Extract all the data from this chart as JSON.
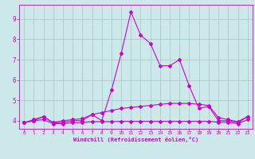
{
  "title": "",
  "xlabel": "Windchill (Refroidissement éolien,°C)",
  "ylabel": "",
  "bg_color": "#cce8e8",
  "grid_color": "#aacccc",
  "line_color": "#cc00cc",
  "xlim": [
    -0.5,
    23.5
  ],
  "ylim": [
    3.6,
    9.7
  ],
  "yticks": [
    4,
    5,
    6,
    7,
    8,
    9
  ],
  "xticks": [
    0,
    1,
    2,
    3,
    4,
    5,
    6,
    7,
    8,
    9,
    10,
    11,
    12,
    13,
    14,
    15,
    16,
    17,
    18,
    19,
    20,
    21,
    22,
    23
  ],
  "line1_x": [
    0,
    1,
    2,
    3,
    4,
    5,
    6,
    7,
    8,
    9,
    10,
    11,
    12,
    13,
    14,
    15,
    16,
    17,
    18,
    19,
    20,
    21,
    22,
    23
  ],
  "line1_y": [
    3.9,
    4.0,
    4.2,
    3.9,
    3.9,
    4.0,
    4.0,
    4.3,
    4.0,
    5.5,
    7.3,
    9.35,
    8.2,
    7.8,
    6.7,
    6.7,
    7.0,
    5.7,
    4.6,
    4.7,
    4.0,
    4.0,
    3.9,
    4.2
  ],
  "line2_x": [
    0,
    1,
    2,
    3,
    4,
    5,
    6,
    7,
    8,
    9,
    10,
    11,
    12,
    13,
    14,
    15,
    16,
    17,
    18,
    19,
    20,
    21,
    22,
    23
  ],
  "line2_y": [
    3.9,
    4.05,
    4.2,
    3.9,
    4.0,
    4.05,
    4.1,
    4.3,
    4.4,
    4.5,
    4.6,
    4.65,
    4.7,
    4.75,
    4.8,
    4.85,
    4.85,
    4.85,
    4.8,
    4.75,
    4.15,
    4.05,
    3.95,
    4.2
  ],
  "line3_x": [
    0,
    1,
    2,
    3,
    4,
    5,
    6,
    7,
    8,
    9,
    10,
    11,
    12,
    13,
    14,
    15,
    16,
    17,
    18,
    19,
    20,
    21,
    22,
    23
  ],
  "line3_y": [
    3.9,
    4.0,
    4.05,
    3.85,
    3.85,
    3.9,
    3.9,
    3.95,
    3.95,
    3.95,
    3.97,
    3.97,
    3.97,
    3.97,
    3.97,
    3.97,
    3.97,
    3.97,
    3.97,
    3.97,
    3.92,
    3.92,
    3.85,
    4.05
  ],
  "markersize": 2.0,
  "linewidth": 0.8
}
